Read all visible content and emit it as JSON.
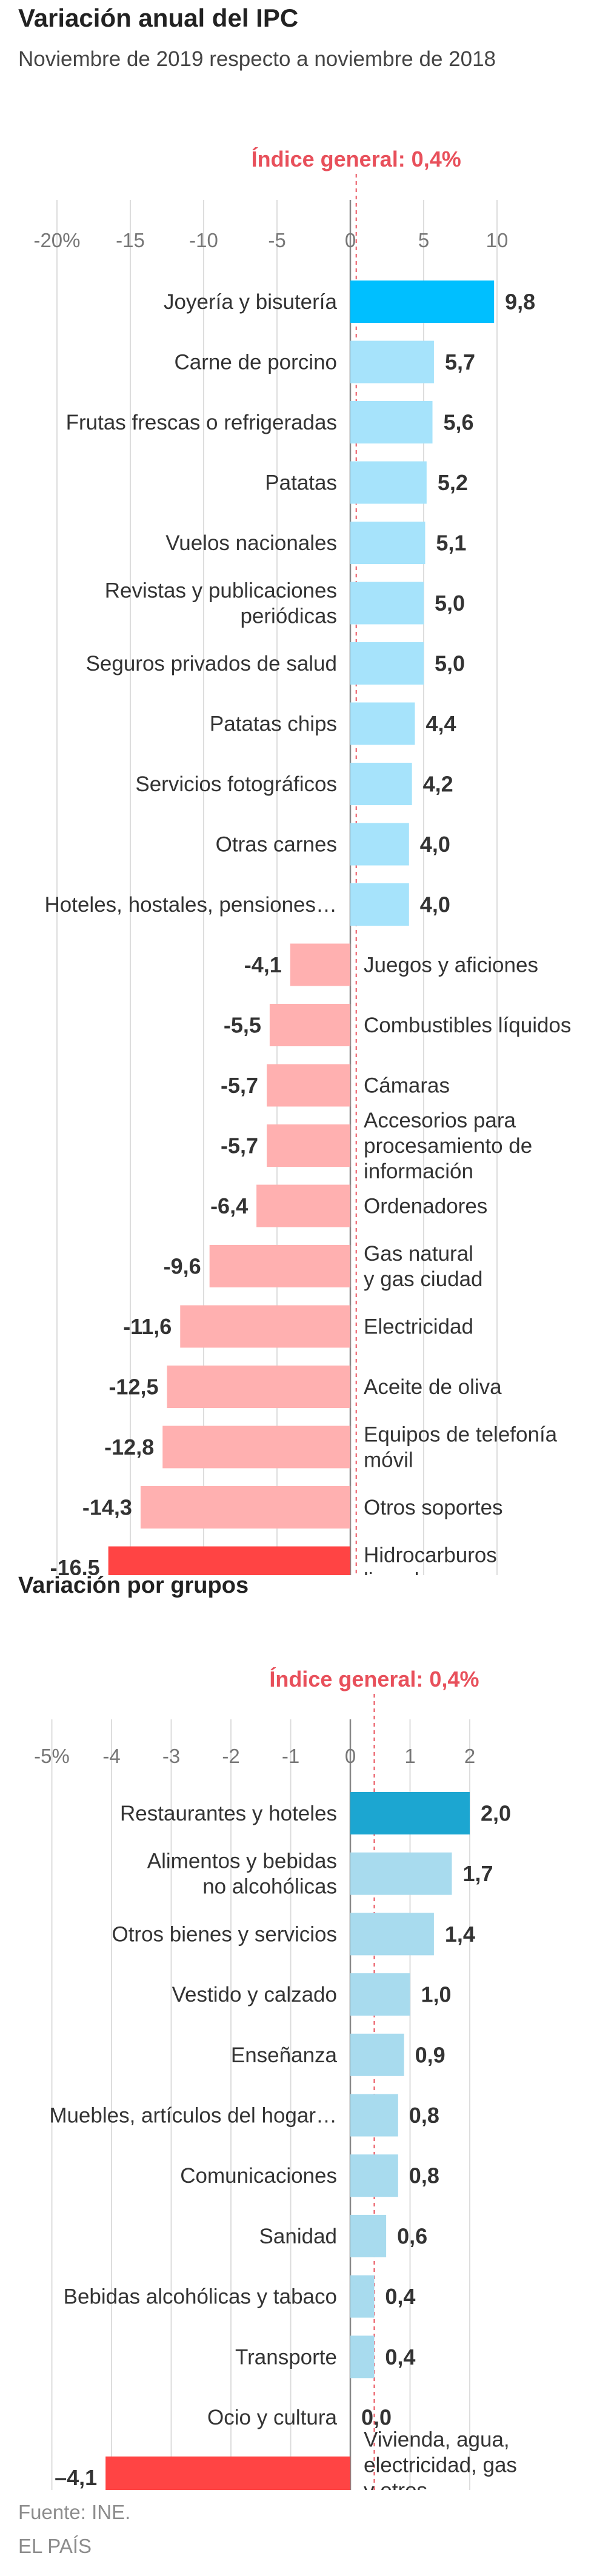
{
  "header": {
    "title": "Variación anual del IPC",
    "subtitle": "Noviembre de 2019 respecto a noviembre de 2018"
  },
  "chart2": {
    "title": "Variación por grupos"
  },
  "footer": {
    "source": "Fuente: INE.",
    "brand": "EL PAÍS"
  },
  "colors": {
    "pos_highlight": "#00bfff",
    "pos": "#a6e3fb",
    "neg_highlight": "#ff4444",
    "neg": "#ffb0b0",
    "pos_highlight_2": "#1ca6d1",
    "pos_2": "#a8dbee",
    "reference": "#e8505b",
    "grid": "#dddddd",
    "axis_zero": "#888888"
  },
  "chart_data": [
    {
      "type": "bar",
      "orientation": "horizontal",
      "title": "Variación anual del IPC",
      "subtitle": "Noviembre de 2019 respecto a noviembre de 2018",
      "xlim": [
        -20,
        10
      ],
      "xticks": [
        -20,
        -15,
        -10,
        -5,
        0,
        5,
        10
      ],
      "xtick_labels": [
        "-20%",
        "-15",
        "-10",
        "-5",
        "0",
        "5",
        "10"
      ],
      "reference": {
        "value": 0.4,
        "label": "Índice general: 0,4%"
      },
      "categories": [
        "Joyería y bisutería",
        "Carne de porcino",
        "Frutas frescas o refrigeradas",
        "Patatas",
        "Vuelos nacionales",
        "Revistas y publicaciones\nperiódicas",
        "Seguros privados de salud",
        "Patatas chips",
        "Servicios fotográficos",
        "Otras carnes",
        "Hoteles, hostales, pensiones…",
        "Juegos y aficiones",
        "Combustibles líquidos",
        "Cámaras",
        "Accesorios para\nprocesamiento de\ninformación",
        "Ordenadores",
        "Gas natural\ny gas ciudad",
        "Electricidad",
        "Aceite de oliva",
        "Equipos de telefonía\nmóvil",
        "Otros soportes",
        "Hidrocarburos\nlicuados"
      ],
      "values": [
        9.8,
        5.7,
        5.6,
        5.2,
        5.1,
        5.0,
        5.0,
        4.4,
        4.2,
        4.0,
        4.0,
        -4.1,
        -5.5,
        -5.7,
        -5.7,
        -6.4,
        -9.6,
        -11.6,
        -12.5,
        -12.8,
        -14.3,
        -16.5
      ],
      "value_labels": [
        "9,8",
        "5,7",
        "5,6",
        "5,2",
        "5,1",
        "5,0",
        "5,0",
        "4,4",
        "4,2",
        "4,0",
        "4,0",
        "-4,1",
        "-5,5",
        "-5,7",
        "-5,7",
        "-6,4",
        "-9,6",
        "-11,6",
        "-12,5",
        "-12,8",
        "-14,3",
        "-16,5"
      ],
      "highlight": [
        "Joyería y bisutería",
        "Hidrocarburos\nlicuados"
      ]
    },
    {
      "type": "bar",
      "orientation": "horizontal",
      "title": "Variación por grupos",
      "xlim": [
        -5,
        2
      ],
      "xticks": [
        -5,
        -4,
        -3,
        -2,
        -1,
        0,
        1,
        2
      ],
      "xtick_labels": [
        "-5%",
        "-4",
        "-3",
        "-2",
        "-1",
        "0",
        "1",
        "2"
      ],
      "reference": {
        "value": 0.4,
        "label": "Índice general: 0,4%"
      },
      "categories": [
        "Restaurantes y hoteles",
        "Alimentos y bebidas\nno alcohólicas",
        "Otros bienes y servicios",
        "Vestido y calzado",
        "Enseñanza",
        "Muebles, artículos del hogar…",
        "Comunicaciones",
        "Sanidad",
        "Bebidas alcohólicas y tabaco",
        "Transporte",
        "Ocio y cultura",
        "Vivienda, agua,\nelectricidad, gas\ny otros\ncombustibles"
      ],
      "values": [
        2.0,
        1.7,
        1.4,
        1.0,
        0.9,
        0.8,
        0.8,
        0.6,
        0.4,
        0.4,
        0.0,
        -4.1
      ],
      "value_labels": [
        "2,0",
        "1,7",
        "1,4",
        "1,0",
        "0,9",
        "0,8",
        "0,8",
        "0,6",
        "0,4",
        "0,4",
        "0,0",
        "–4,1"
      ],
      "highlight": [
        "Restaurantes y hoteles",
        "Vivienda, agua,\nelectricidad, gas\ny otros\ncombustibles"
      ]
    }
  ]
}
